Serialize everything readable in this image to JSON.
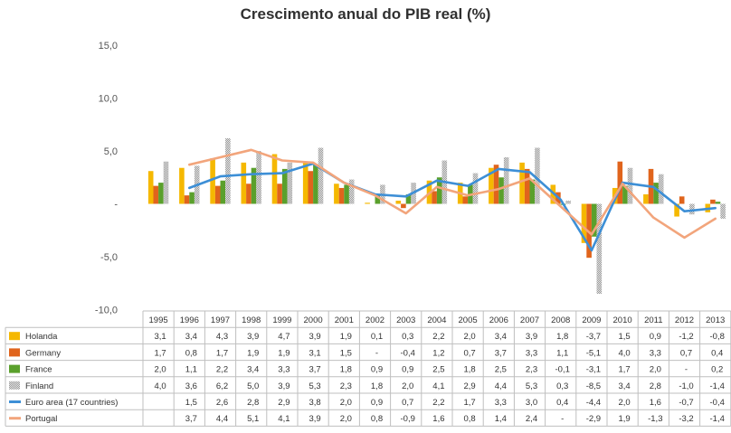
{
  "chart_data": {
    "type": "bar",
    "title": "Crescimento anual do PIB real (%)",
    "categories": [
      "1995",
      "1996",
      "1997",
      "1998",
      "1999",
      "2000",
      "2001",
      "2002",
      "2003",
      "2004",
      "2005",
      "2006",
      "2007",
      "2008",
      "2009",
      "2010",
      "2011",
      "2012",
      "2013"
    ],
    "y_tick_labels": [
      "15,0",
      "10,0",
      "5,0",
      "-",
      "-5,0",
      "-10,0"
    ],
    "y_tick_values": [
      15,
      10,
      5,
      0,
      -5,
      -10
    ],
    "ylim": [
      -10,
      15
    ],
    "grid": false,
    "legend": "table below chart",
    "bar_series": [
      {
        "name": "Holanda",
        "color": "#f5b800",
        "values": [
          3.1,
          3.4,
          4.3,
          3.9,
          4.7,
          3.9,
          1.9,
          0.1,
          0.3,
          2.2,
          2.0,
          3.4,
          3.9,
          1.8,
          -3.7,
          1.5,
          0.9,
          -1.2,
          -0.8
        ],
        "labels": [
          "3,1",
          "3,4",
          "4,3",
          "3,9",
          "4,7",
          "3,9",
          "1,9",
          "0,1",
          "0,3",
          "2,2",
          "2,0",
          "3,4",
          "3,9",
          "1,8",
          "-3,7",
          "1,5",
          "0,9",
          "-1,2",
          "-0,8"
        ]
      },
      {
        "name": "Germany",
        "color": "#e0641c",
        "values": [
          1.7,
          0.8,
          1.7,
          1.9,
          1.9,
          3.1,
          1.5,
          null,
          -0.4,
          1.2,
          0.7,
          3.7,
          3.3,
          1.1,
          -5.1,
          4.0,
          3.3,
          0.7,
          0.4
        ],
        "labels": [
          "1,7",
          "0,8",
          "1,7",
          "1,9",
          "1,9",
          "3,1",
          "1,5",
          "-",
          "-0,4",
          "1,2",
          "0,7",
          "3,7",
          "3,3",
          "1,1",
          "-5,1",
          "4,0",
          "3,3",
          "0,7",
          "0,4"
        ]
      },
      {
        "name": "France",
        "color": "#5aa02c",
        "values": [
          2.0,
          1.1,
          2.2,
          3.4,
          3.3,
          3.7,
          1.8,
          0.9,
          0.9,
          2.5,
          1.8,
          2.5,
          2.3,
          -0.1,
          -3.1,
          1.7,
          2.0,
          null,
          0.2
        ],
        "labels": [
          "2,0",
          "1,1",
          "2,2",
          "3,4",
          "3,3",
          "3,7",
          "1,8",
          "0,9",
          "0,9",
          "2,5",
          "1,8",
          "2,5",
          "2,3",
          "-0,1",
          "-3,1",
          "1,7",
          "2,0",
          "-",
          "0,2"
        ]
      },
      {
        "name": "Finland",
        "color": "#bdbdbd",
        "values": [
          4.0,
          3.6,
          6.2,
          5.0,
          3.9,
          5.3,
          2.3,
          1.8,
          2.0,
          4.1,
          2.9,
          4.4,
          5.3,
          0.3,
          -8.5,
          3.4,
          2.8,
          -1.0,
          -1.4
        ],
        "labels": [
          "4,0",
          "3,6",
          "6,2",
          "5,0",
          "3,9",
          "5,3",
          "2,3",
          "1,8",
          "2,0",
          "4,1",
          "2,9",
          "4,4",
          "5,3",
          "0,3",
          "-8,5",
          "3,4",
          "2,8",
          "-1,0",
          "-1,4"
        ]
      }
    ],
    "line_series": [
      {
        "name": "Euro area (17 countries)",
        "color": "#3d8fd6",
        "values": [
          null,
          1.5,
          2.6,
          2.8,
          2.9,
          3.8,
          2.0,
          0.9,
          0.7,
          2.2,
          1.7,
          3.3,
          3.0,
          0.4,
          -4.4,
          2.0,
          1.6,
          -0.7,
          -0.4
        ],
        "labels": [
          "",
          "1,5",
          "2,6",
          "2,8",
          "2,9",
          "3,8",
          "2,0",
          "0,9",
          "0,7",
          "2,2",
          "1,7",
          "3,3",
          "3,0",
          "0,4",
          "-4,4",
          "2,0",
          "1,6",
          "-0,7",
          "-0,4"
        ]
      },
      {
        "name": "Portugal",
        "color": "#f2a57c",
        "values": [
          null,
          3.7,
          4.4,
          5.1,
          4.1,
          3.9,
          2.0,
          0.8,
          -0.9,
          1.6,
          0.8,
          1.4,
          2.4,
          null,
          -2.9,
          1.9,
          -1.3,
          -3.2,
          -1.4
        ],
        "labels": [
          "",
          "3,7",
          "4,4",
          "5,1",
          "4,1",
          "3,9",
          "2,0",
          "0,8",
          "-0,9",
          "1,6",
          "0,8",
          "1,4",
          "2,4",
          "-",
          "-2,9",
          "1,9",
          "-1,3",
          "-3,2",
          "-1,4"
        ]
      }
    ]
  }
}
